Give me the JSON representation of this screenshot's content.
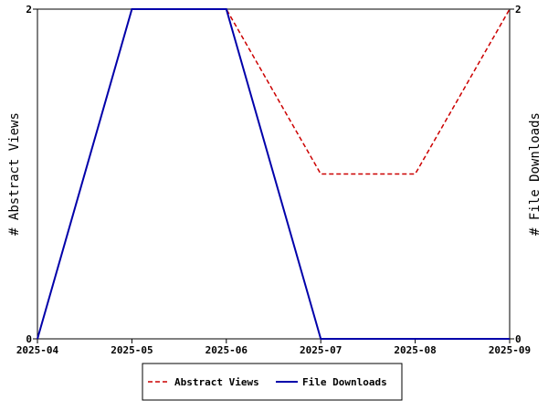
{
  "chart_data": {
    "type": "line",
    "categories": [
      "2025-04",
      "2025-05",
      "2025-06",
      "2025-07",
      "2025-08",
      "2025-09"
    ],
    "series": [
      {
        "name": "Abstract Views",
        "axis": "left",
        "color": "#cc0000",
        "dash": "dashed",
        "values": [
          0,
          2,
          2,
          1,
          1,
          2
        ]
      },
      {
        "name": "File Downloads",
        "axis": "right",
        "color": "#0000aa",
        "dash": "solid",
        "values": [
          0,
          2,
          2,
          0,
          0,
          0
        ]
      }
    ],
    "ylabel_left": "# Abstract Views",
    "ylabel_right": "# File Downloads",
    "ylim_left": [
      0,
      2
    ],
    "ylim_right": [
      0,
      2
    ],
    "ytick_labels_left": [
      "0",
      "2"
    ],
    "ytick_labels_right": [
      "0",
      "2"
    ],
    "grid": false,
    "legend_position": "bottom-center"
  }
}
